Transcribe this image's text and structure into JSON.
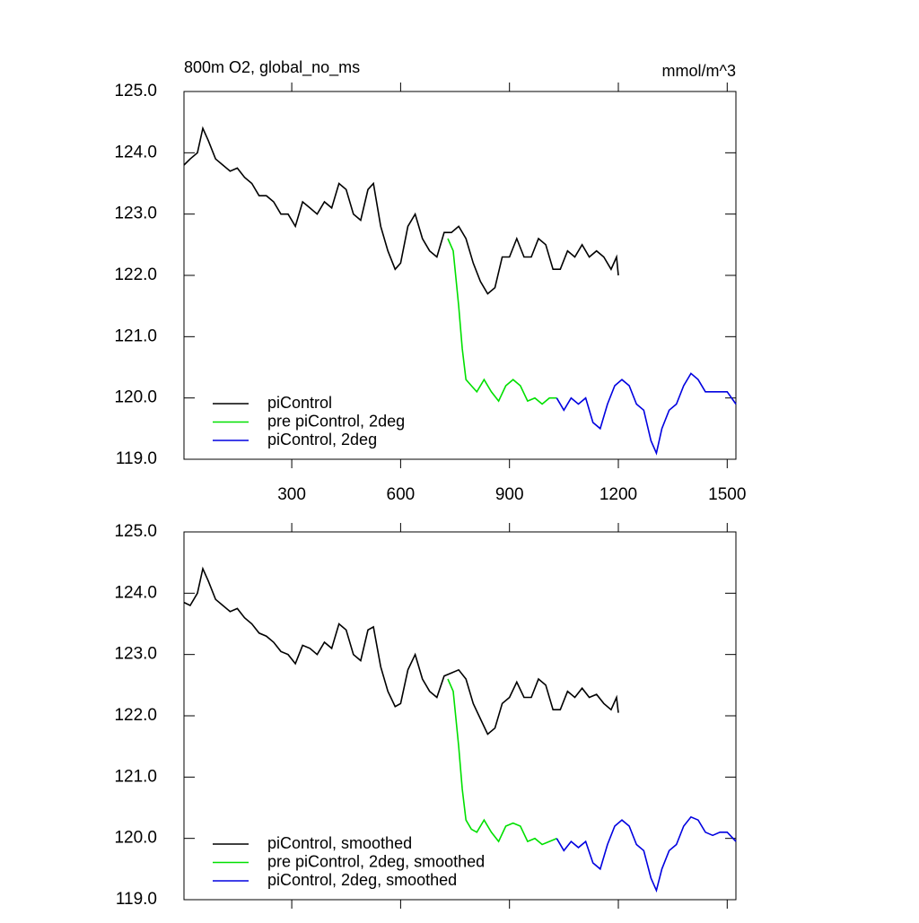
{
  "chart_data": [
    {
      "type": "line",
      "title": "800m O2, global_no_ms",
      "units": "mmol/m^3",
      "xlim": [
        3,
        1524
      ],
      "ylim": [
        119,
        125
      ],
      "xticks": [
        300,
        600,
        900,
        1200,
        1500
      ],
      "xtick_labels": true,
      "yticks": [
        {
          "value": 119,
          "label": "119.0"
        },
        {
          "value": 120,
          "label": "120.0"
        },
        {
          "value": 121,
          "label": "121.0"
        },
        {
          "value": 122,
          "label": "122.0"
        },
        {
          "value": 123,
          "label": "123.0"
        },
        {
          "value": 124,
          "label": "124.0"
        },
        {
          "value": 125,
          "label": "125.0"
        }
      ],
      "legend": "lower left",
      "series": [
        {
          "name": "piControl",
          "color": "#000000",
          "x": [
            3,
            20,
            40,
            55,
            70,
            90,
            110,
            130,
            150,
            170,
            190,
            210,
            230,
            250,
            270,
            290,
            310,
            330,
            350,
            370,
            390,
            410,
            430,
            450,
            470,
            490,
            510,
            525,
            545,
            565,
            585,
            600,
            620,
            640,
            660,
            680,
            700,
            720,
            740,
            760,
            780,
            800,
            820,
            840,
            860,
            880,
            900,
            920,
            940,
            960,
            980,
            1000,
            1020,
            1040,
            1060,
            1080,
            1100,
            1120,
            1140,
            1160,
            1180,
            1195,
            1200
          ],
          "values": [
            123.8,
            123.9,
            124.0,
            124.4,
            124.2,
            123.9,
            123.8,
            123.7,
            123.75,
            123.6,
            123.5,
            123.3,
            123.3,
            123.2,
            123.0,
            123.0,
            122.8,
            123.2,
            123.1,
            123.0,
            123.2,
            123.1,
            123.5,
            123.4,
            123.0,
            122.9,
            123.4,
            123.5,
            122.8,
            122.4,
            122.1,
            122.2,
            122.8,
            123.0,
            122.6,
            122.4,
            122.3,
            122.7,
            122.7,
            122.8,
            122.6,
            122.2,
            121.9,
            121.7,
            121.8,
            122.3,
            122.3,
            122.6,
            122.3,
            122.3,
            122.6,
            122.5,
            122.1,
            122.1,
            122.4,
            122.3,
            122.5,
            122.3,
            122.4,
            122.3,
            122.1,
            122.3,
            122.0
          ]
        },
        {
          "name": "pre piControl, 2deg",
          "color": "#00e000",
          "x": [
            730,
            745,
            760,
            770,
            780,
            795,
            810,
            830,
            850,
            870,
            890,
            910,
            930,
            950,
            970,
            990,
            1010,
            1030
          ],
          "values": [
            122.6,
            122.4,
            121.5,
            120.8,
            120.3,
            120.2,
            120.1,
            120.3,
            120.1,
            119.95,
            120.2,
            120.3,
            120.2,
            119.95,
            120.0,
            119.9,
            120.0,
            120.0
          ]
        },
        {
          "name": "piControl, 2deg",
          "color": "#0000e0",
          "x": [
            1030,
            1050,
            1070,
            1090,
            1110,
            1130,
            1150,
            1170,
            1190,
            1210,
            1230,
            1250,
            1270,
            1290,
            1305,
            1320,
            1340,
            1360,
            1380,
            1400,
            1420,
            1440,
            1460,
            1480,
            1500,
            1524
          ],
          "values": [
            120.0,
            119.8,
            120.0,
            119.9,
            120.0,
            119.6,
            119.5,
            119.9,
            120.2,
            120.3,
            120.2,
            119.9,
            119.8,
            119.3,
            119.1,
            119.5,
            119.8,
            119.9,
            120.2,
            120.4,
            120.3,
            120.1,
            120.1,
            120.1,
            120.1,
            119.9
          ]
        }
      ]
    },
    {
      "type": "line",
      "xlim": [
        3,
        1524
      ],
      "ylim": [
        119,
        125
      ],
      "xticks": [
        300,
        600,
        900,
        1200,
        1500
      ],
      "xtick_labels": false,
      "yticks": [
        {
          "value": 119,
          "label": "119.0"
        },
        {
          "value": 120,
          "label": "120.0"
        },
        {
          "value": 121,
          "label": "121.0"
        },
        {
          "value": 122,
          "label": "122.0"
        },
        {
          "value": 123,
          "label": "123.0"
        },
        {
          "value": 124,
          "label": "124.0"
        },
        {
          "value": 125,
          "label": "125.0"
        }
      ],
      "legend": "lower left",
      "series": [
        {
          "name": "piControl, smoothed",
          "color": "#000000",
          "x": [
            3,
            20,
            40,
            55,
            70,
            90,
            110,
            130,
            150,
            170,
            190,
            210,
            230,
            250,
            270,
            290,
            310,
            330,
            350,
            370,
            390,
            410,
            430,
            450,
            470,
            490,
            510,
            525,
            545,
            565,
            585,
            600,
            620,
            640,
            660,
            680,
            700,
            720,
            740,
            760,
            780,
            800,
            820,
            840,
            860,
            880,
            900,
            920,
            940,
            960,
            980,
            1000,
            1020,
            1040,
            1060,
            1080,
            1100,
            1120,
            1140,
            1160,
            1180,
            1195,
            1200
          ],
          "values": [
            123.85,
            123.8,
            124.0,
            124.4,
            124.2,
            123.9,
            123.8,
            123.7,
            123.75,
            123.6,
            123.5,
            123.35,
            123.3,
            123.2,
            123.05,
            123.0,
            122.85,
            123.15,
            123.1,
            123.0,
            123.2,
            123.1,
            123.5,
            123.4,
            123.0,
            122.9,
            123.4,
            123.45,
            122.8,
            122.4,
            122.15,
            122.2,
            122.75,
            123.0,
            122.6,
            122.4,
            122.3,
            122.65,
            122.7,
            122.75,
            122.6,
            122.2,
            121.95,
            121.7,
            121.8,
            122.2,
            122.3,
            122.55,
            122.3,
            122.3,
            122.6,
            122.5,
            122.1,
            122.1,
            122.4,
            122.3,
            122.45,
            122.3,
            122.35,
            122.2,
            122.1,
            122.3,
            122.05
          ]
        },
        {
          "name": "pre piControl, 2deg, smoothed",
          "color": "#00e000",
          "x": [
            730,
            745,
            760,
            770,
            780,
            795,
            810,
            830,
            850,
            870,
            890,
            910,
            930,
            950,
            970,
            990,
            1010,
            1030
          ],
          "values": [
            122.6,
            122.4,
            121.5,
            120.8,
            120.3,
            120.15,
            120.1,
            120.3,
            120.1,
            119.95,
            120.2,
            120.25,
            120.2,
            119.95,
            120.0,
            119.9,
            119.95,
            120.0
          ]
        },
        {
          "name": "piControl, 2deg, smoothed",
          "color": "#0000e0",
          "x": [
            1030,
            1050,
            1070,
            1090,
            1110,
            1130,
            1150,
            1170,
            1190,
            1210,
            1230,
            1250,
            1270,
            1290,
            1305,
            1320,
            1340,
            1360,
            1380,
            1400,
            1420,
            1440,
            1460,
            1480,
            1500,
            1524
          ],
          "values": [
            120.0,
            119.8,
            119.95,
            119.85,
            119.95,
            119.6,
            119.5,
            119.9,
            120.2,
            120.3,
            120.2,
            119.9,
            119.8,
            119.35,
            119.15,
            119.5,
            119.8,
            119.9,
            120.2,
            120.35,
            120.3,
            120.1,
            120.05,
            120.1,
            120.1,
            119.95
          ]
        }
      ]
    }
  ]
}
